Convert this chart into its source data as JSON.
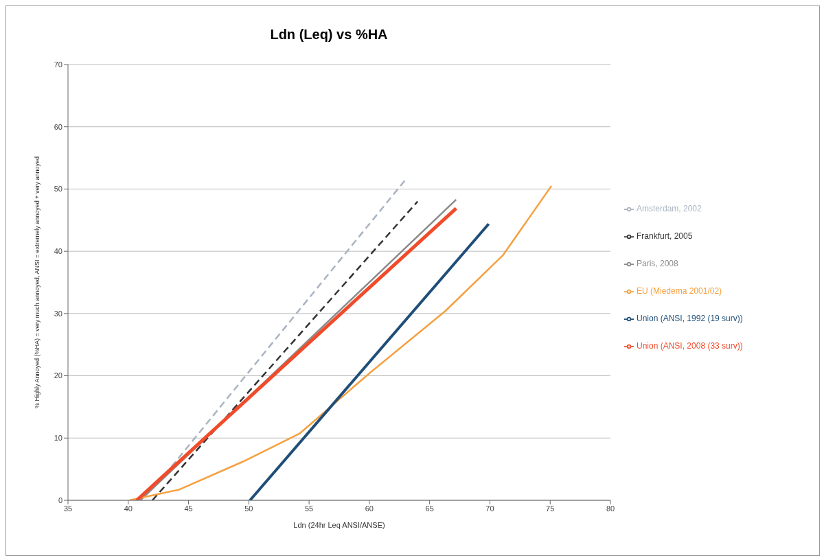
{
  "chart_data": {
    "type": "line",
    "title": "Ldn (Leq) vs %HA",
    "xlabel": "Ldn (24hr Leq ANSI/ANSE)",
    "ylabel": "% Highly Annoyed (%HA) = very much annoyed, ANSI = extremely annoyed + very annoyed",
    "xlim": [
      35,
      80
    ],
    "xticks": [
      35,
      40,
      45,
      50,
      55,
      60,
      65,
      70,
      75,
      80
    ],
    "ylim": [
      0,
      70
    ],
    "yticks": [
      0,
      10,
      20,
      30,
      40,
      50,
      60,
      70
    ],
    "grid": "y",
    "legend": "right",
    "marker": "none",
    "series": [
      {
        "name": "Amsterdam, 2002",
        "color": "#a9b4c0",
        "line_style": "dashed",
        "x": [
          43,
          63
        ],
        "values": [
          4,
          51.5
        ]
      },
      {
        "name": "Frankfurt, 2005",
        "color": "#333333",
        "line_style": "dashed",
        "x": [
          42,
          64
        ],
        "values": [
          0,
          48
        ]
      },
      {
        "name": "Paris, 2008",
        "color": "#8a8a8a",
        "line_style": "solid",
        "x": [
          41,
          67.2
        ],
        "values": [
          0,
          48.3
        ]
      },
      {
        "name": "EU (Miedema 2001/02)",
        "color": "#f5a040",
        "line_style": "solid",
        "x": [
          40.1,
          44.2,
          49.5,
          54.2,
          60,
          66.3,
          71.1,
          75.1
        ],
        "values": [
          0,
          1.7,
          6.2,
          10.7,
          20.4,
          30.4,
          39.4,
          50.5
        ]
      },
      {
        "name": "Union (ANSI, 1992 (19 surv))",
        "color": "#1f4e79",
        "line_style": "solid",
        "x": [
          50.1,
          69.9
        ],
        "values": [
          0,
          44.4
        ]
      },
      {
        "name": "Union (ANSI, 2008 (33 surv))",
        "color": "#f04b2a",
        "line_style": "solid",
        "x": [
          40.7,
          67.2
        ],
        "values": [
          0,
          46.9
        ]
      }
    ]
  }
}
